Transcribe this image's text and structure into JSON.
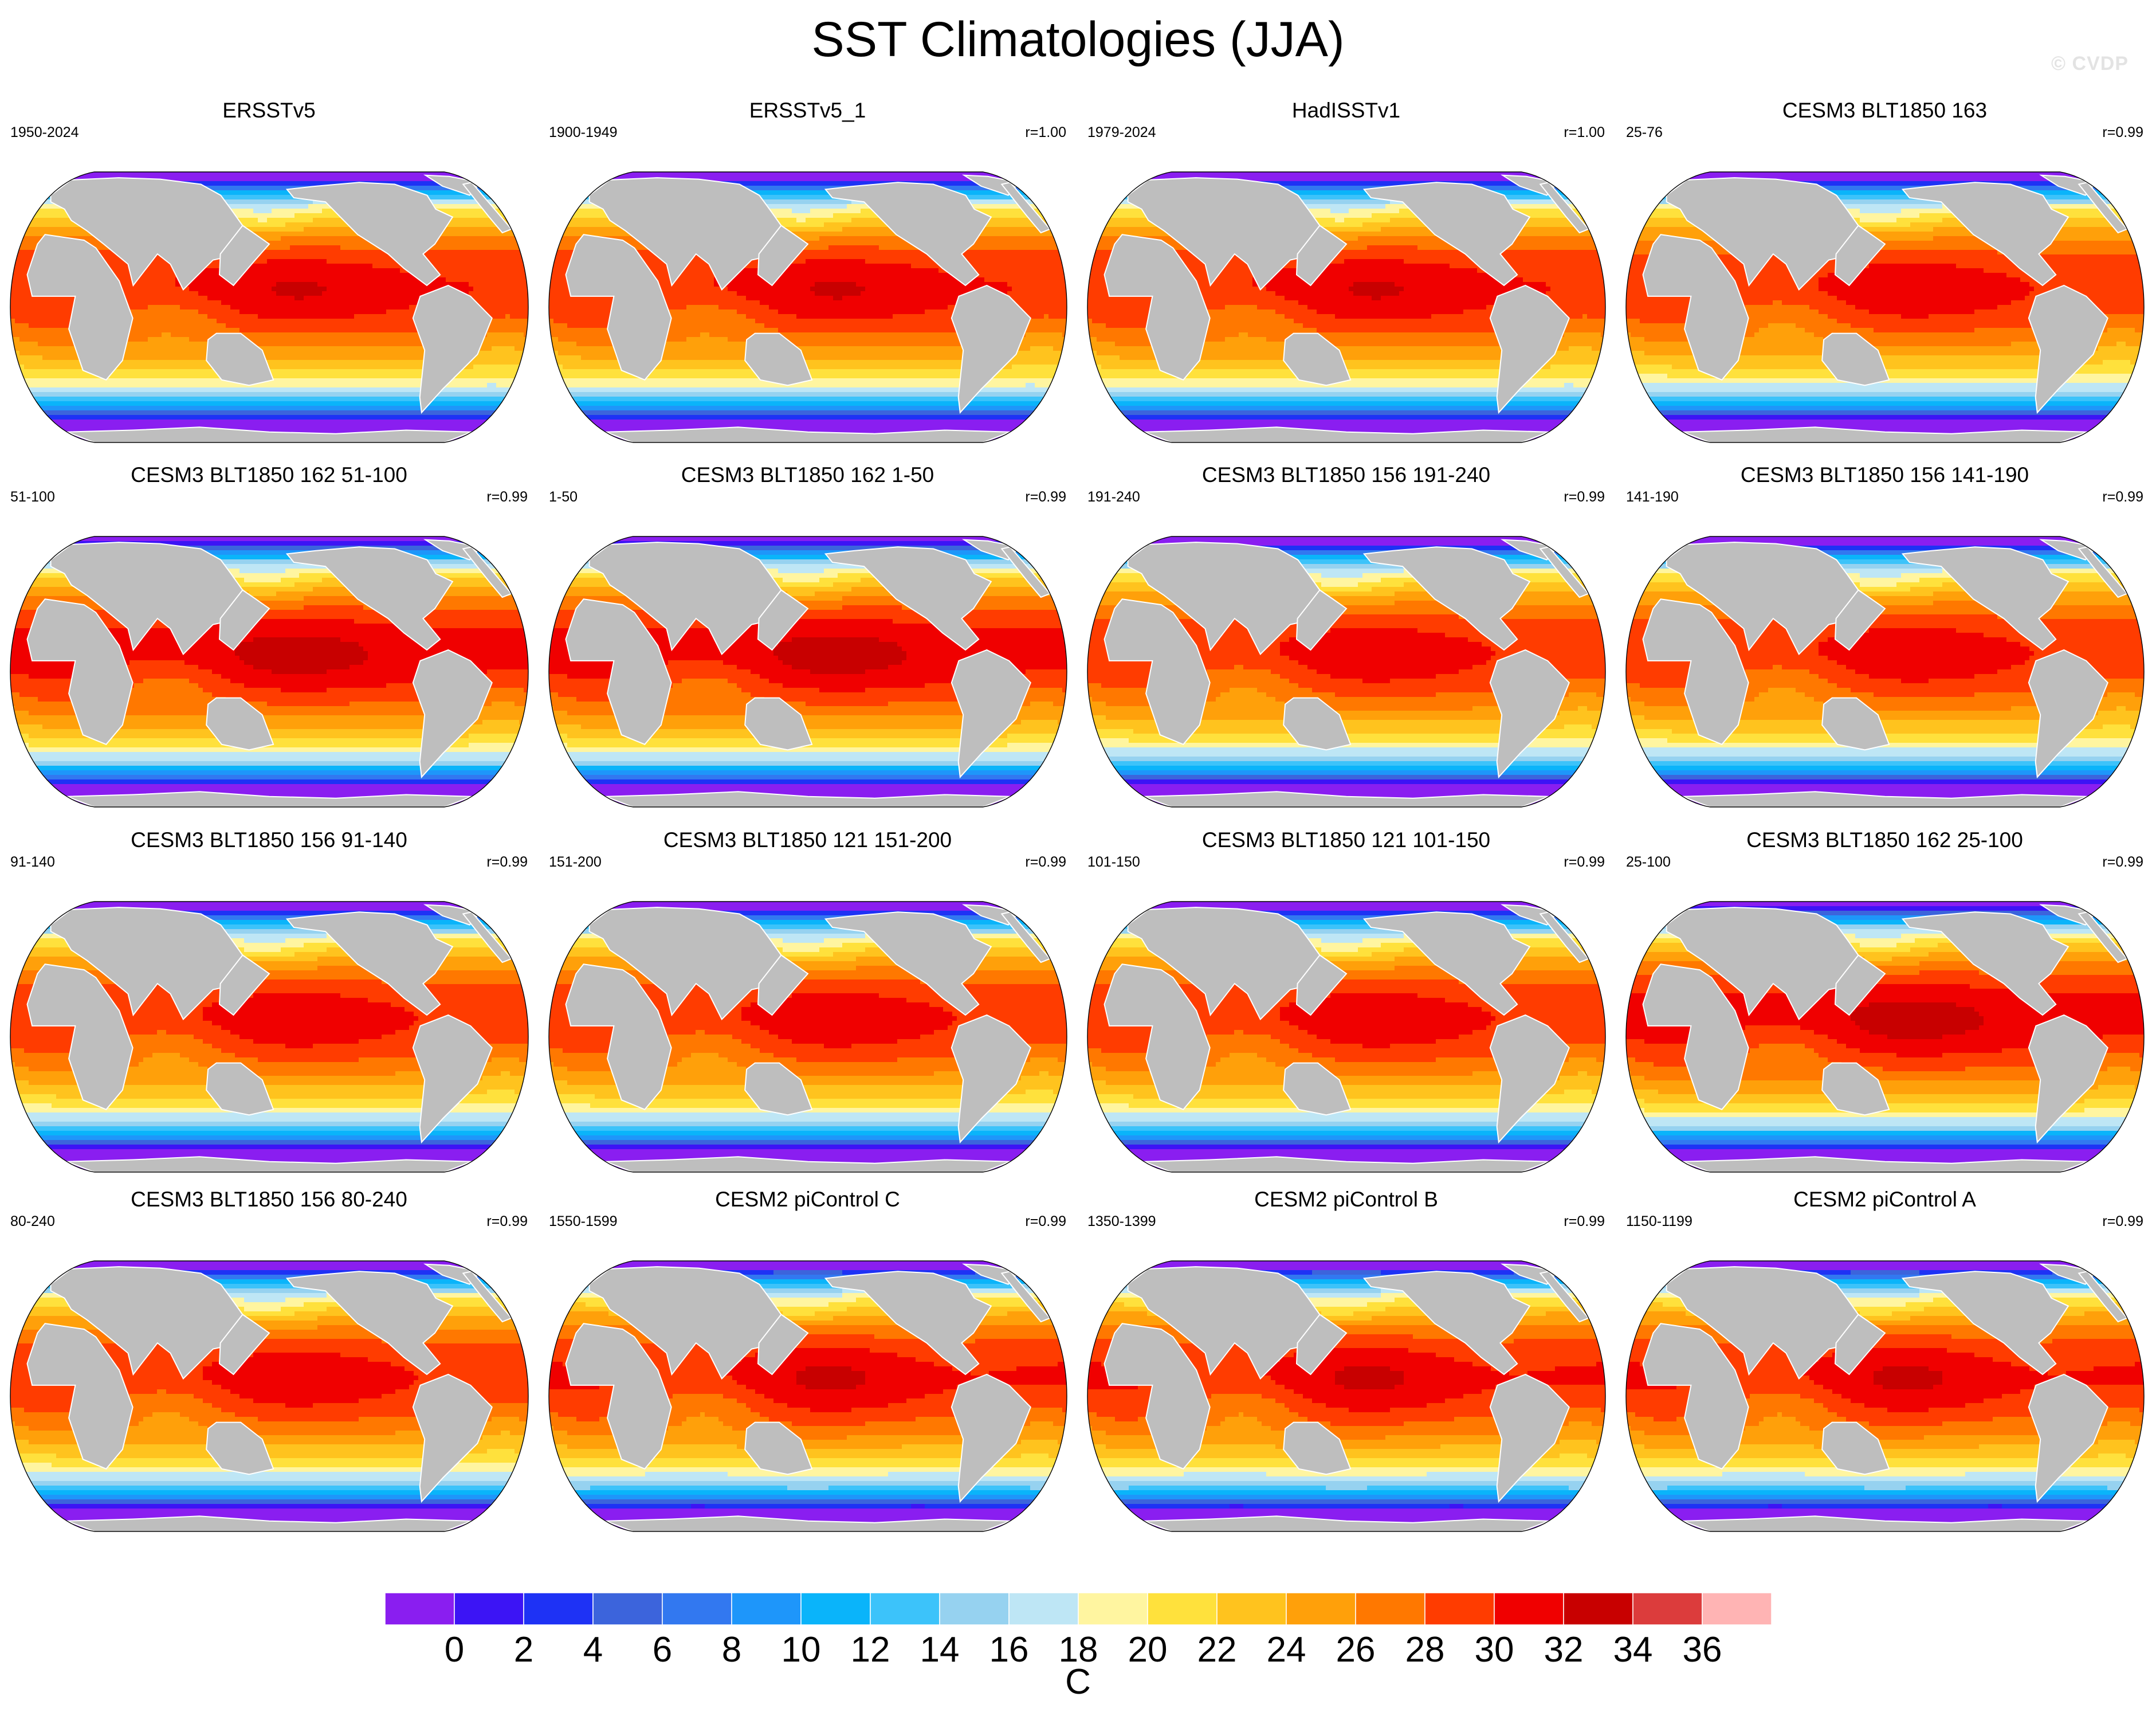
{
  "title": "SST Climatologies (JJA)",
  "watermark": "© CVDP",
  "panels": [
    {
      "title": "ERSSTv5",
      "period": "1950-2024",
      "corr": "",
      "variant": 0
    },
    {
      "title": "ERSSTv5_1",
      "period": "1900-1949",
      "corr": "r=1.00",
      "variant": 0
    },
    {
      "title": "HadISSTv1",
      "period": "1979-2024",
      "corr": "r=1.00",
      "variant": 0
    },
    {
      "title": "CESM3 BLT1850 163",
      "period": "25-76",
      "corr": "r=0.99",
      "variant": 1
    },
    {
      "title": "CESM3 BLT1850 162 51-100",
      "period": "51-100",
      "corr": "r=0.99",
      "variant": 2
    },
    {
      "title": "CESM3 BLT1850 162 1-50",
      "period": "1-50",
      "corr": "r=0.99",
      "variant": 2
    },
    {
      "title": "CESM3 BLT1850 156 191-240",
      "period": "191-240",
      "corr": "r=0.99",
      "variant": 1
    },
    {
      "title": "CESM3 BLT1850 156 141-190",
      "period": "141-190",
      "corr": "r=0.99",
      "variant": 1
    },
    {
      "title": "CESM3 BLT1850 156 91-140",
      "period": "91-140",
      "corr": "r=0.99",
      "variant": 1
    },
    {
      "title": "CESM3 BLT1850 121 151-200",
      "period": "151-200",
      "corr": "r=0.99",
      "variant": 1
    },
    {
      "title": "CESM3 BLT1850 121 101-150",
      "period": "101-150",
      "corr": "r=0.99",
      "variant": 1
    },
    {
      "title": "CESM3 BLT1850 162 25-100",
      "period": "25-100",
      "corr": "r=0.99",
      "variant": 2
    },
    {
      "title": "CESM3 BLT1850 156 80-240",
      "period": "80-240",
      "corr": "r=0.99",
      "variant": 1
    },
    {
      "title": "CESM2 piControl C",
      "period": "1550-1599",
      "corr": "r=0.99",
      "variant": 3
    },
    {
      "title": "CESM2 piControl B",
      "period": "1350-1399",
      "corr": "r=0.99",
      "variant": 3
    },
    {
      "title": "CESM2 piControl A",
      "period": "1150-1199",
      "corr": "r=0.99",
      "variant": 3
    }
  ],
  "colorbar": {
    "units": "C",
    "levels": [
      "0",
      "2",
      "4",
      "6",
      "8",
      "10",
      "12",
      "14",
      "16",
      "18",
      "20",
      "22",
      "24",
      "26",
      "28",
      "30",
      "32",
      "34",
      "36"
    ],
    "colors": [
      "#8a1ef0",
      "#3c14f5",
      "#1e32f5",
      "#3c64dc",
      "#3278f0",
      "#1e96fa",
      "#0ab4fa",
      "#3cc3fa",
      "#96d2f0",
      "#bee6f5",
      "#fff5a0",
      "#ffe13c",
      "#ffc31e",
      "#ffa00a",
      "#ff7800",
      "#ff3c00",
      "#f00000",
      "#c80000",
      "#dc3c3c",
      "#ffb4b4"
    ]
  }
}
